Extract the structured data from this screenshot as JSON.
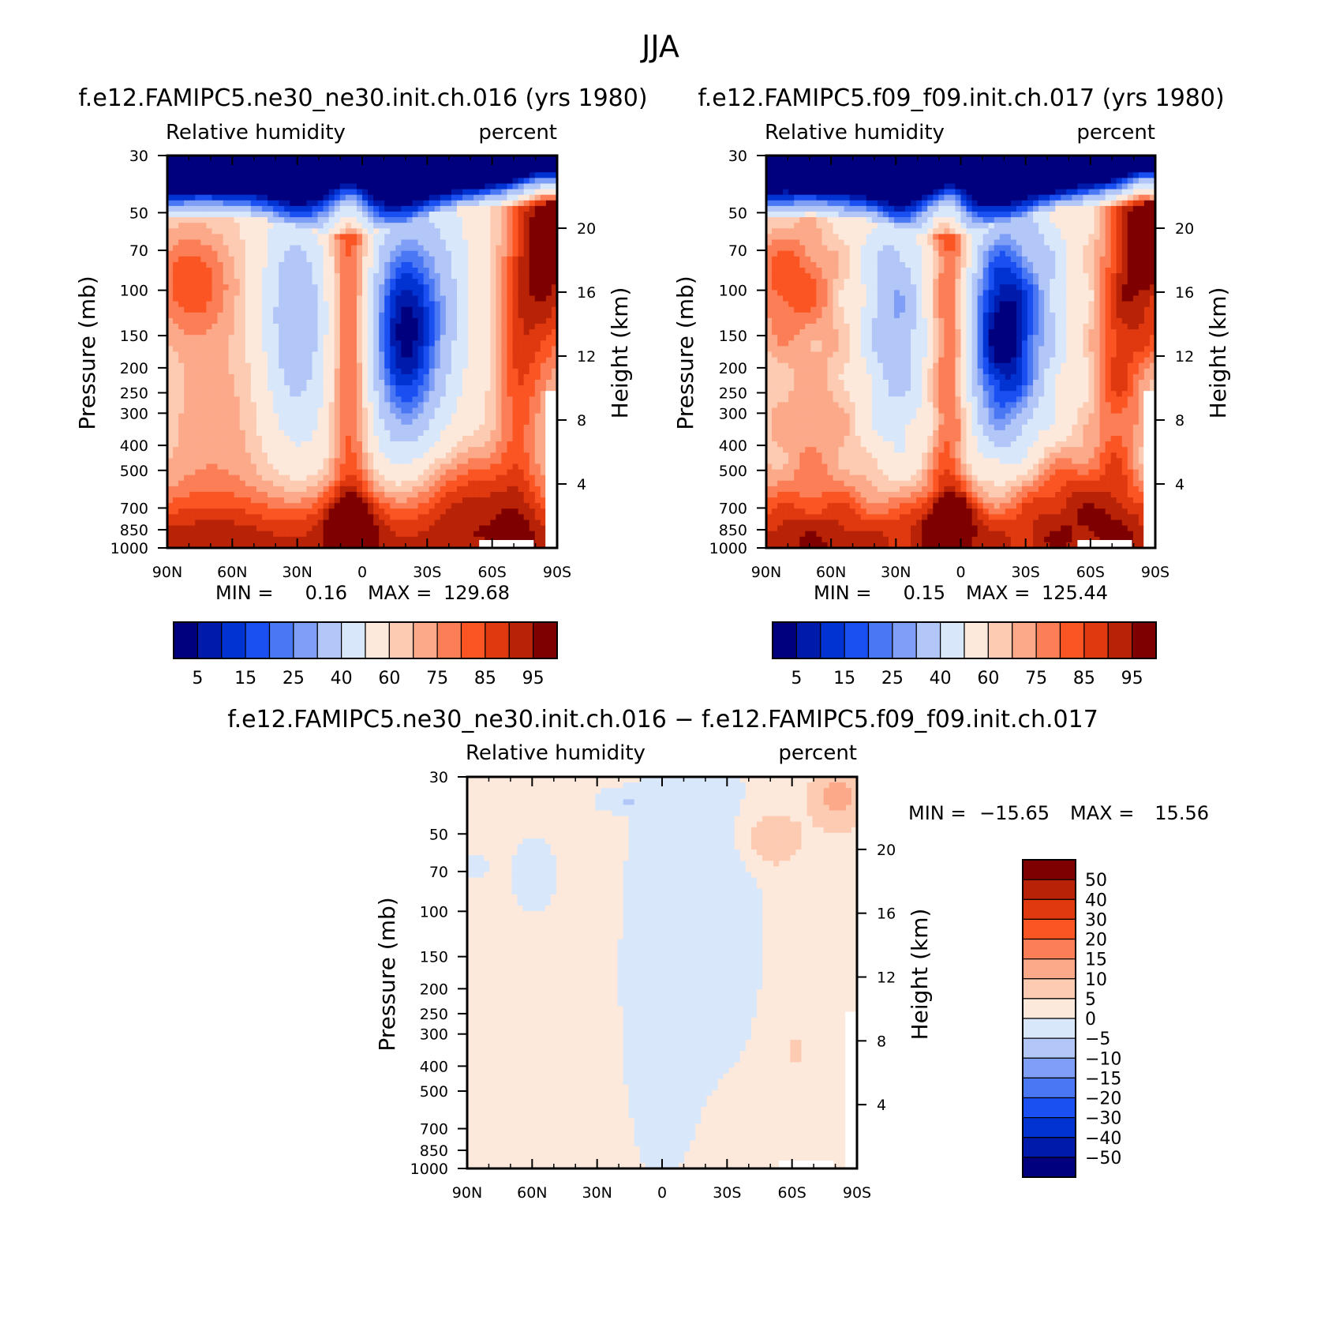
{
  "figure": {
    "title": "JJA"
  },
  "colors": {
    "abs_levels": [
      "#00007f",
      "#001aab",
      "#0033d2",
      "#1a4ff2",
      "#4a78f4",
      "#7f9ef5",
      "#b3c6f8",
      "#d9e7fb",
      "#fde9dc",
      "#fccbb2",
      "#fca98a",
      "#fc7e56",
      "#fa5523",
      "#e0380f",
      "#b82206",
      "#7f0000"
    ],
    "diff_levels": [
      "#00007f",
      "#001aab",
      "#0033d2",
      "#1a4ff2",
      "#4a78f4",
      "#7f9ef5",
      "#b3c6f8",
      "#d9e7fb",
      "#fde9dc",
      "#fccbb2",
      "#fca98a",
      "#fc7e56",
      "#fa5523",
      "#e0380f",
      "#b82206",
      "#7f0000"
    ]
  },
  "chart_data": [
    {
      "type": "heatmap",
      "title": "f.e12.FAMIPC5.ne30_ne30.init.ch.016 (yrs 1980)",
      "left_label": "Relative humidity",
      "right_label": "percent",
      "ylabel": "Pressure (mb)",
      "y2label": "Height (km)",
      "x_ticks": [
        "90N",
        "60N",
        "30N",
        "0",
        "30S",
        "60S",
        "90S"
      ],
      "y_ticks": [
        "30",
        "50",
        "70",
        "100",
        "150",
        "200",
        "250",
        "300",
        "400",
        "500",
        "700",
        "850",
        "1000"
      ],
      "y2_ticks": [
        "20",
        "16",
        "12",
        "8",
        "4"
      ],
      "min_label": "MIN =",
      "min_value": "0.16",
      "max_label": "MAX =",
      "max_value": "129.68",
      "colorbar_labels": [
        "5",
        "15",
        "25",
        "40",
        "60",
        "75",
        "85",
        "95"
      ]
    },
    {
      "type": "heatmap",
      "title": "f.e12.FAMIPC5.f09_f09.init.ch.017 (yrs 1980)",
      "left_label": "Relative humidity",
      "right_label": "percent",
      "ylabel": "Pressure (mb)",
      "y2label": "Height (km)",
      "x_ticks": [
        "90N",
        "60N",
        "30N",
        "0",
        "30S",
        "60S",
        "90S"
      ],
      "y_ticks": [
        "30",
        "50",
        "70",
        "100",
        "150",
        "200",
        "250",
        "300",
        "400",
        "500",
        "700",
        "850",
        "1000"
      ],
      "y2_ticks": [
        "20",
        "16",
        "12",
        "8",
        "4"
      ],
      "min_label": "MIN =",
      "min_value": "0.15",
      "max_label": "MAX =",
      "max_value": "125.44",
      "colorbar_labels": [
        "5",
        "15",
        "25",
        "40",
        "60",
        "75",
        "85",
        "95"
      ]
    },
    {
      "type": "heatmap",
      "title": "f.e12.FAMIPC5.ne30_ne30.init.ch.016 − f.e12.FAMIPC5.f09_f09.init.ch.017",
      "left_label": "Relative humidity",
      "right_label": "percent",
      "ylabel": "Pressure (mb)",
      "y2label": "Height (km)",
      "x_ticks": [
        "90N",
        "60N",
        "30N",
        "0",
        "30S",
        "60S",
        "90S"
      ],
      "y_ticks": [
        "30",
        "50",
        "70",
        "100",
        "150",
        "200",
        "250",
        "300",
        "400",
        "500",
        "700",
        "850",
        "1000"
      ],
      "y2_ticks": [
        "20",
        "16",
        "12",
        "8",
        "4"
      ],
      "min_label": "MIN =",
      "min_value": "−15.65",
      "max_label": "MAX =",
      "max_value": "15.56",
      "colorbar_labels": [
        "50",
        "40",
        "30",
        "20",
        "15",
        "10",
        "5",
        "0",
        "−5",
        "−10",
        "−15",
        "−20",
        "−30",
        "−40",
        "−50"
      ]
    }
  ]
}
